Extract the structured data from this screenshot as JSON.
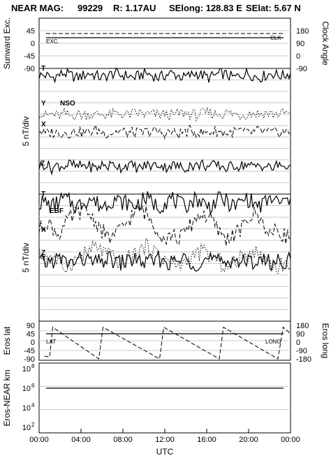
{
  "header": {
    "mission": "NEAR MAG:",
    "date": "99229",
    "r": "R: 1.17AU",
    "selong": "SElong:  128.83 E",
    "selat": "SElat:    5.67 N"
  },
  "colors": {
    "ink": "#000000",
    "grid": "#c8c8d2",
    "background": "#ffffff"
  },
  "chart_data": [
    {
      "id": "sunward",
      "type": "line",
      "ylabel_left": "Sunward Exc.",
      "ylabel_right": "Clock Angle",
      "left_ticks": [
        "45",
        "0",
        "-45",
        "-90"
      ],
      "right_ticks": [
        "180",
        "90",
        "0",
        "-90"
      ],
      "ylim": [
        -90,
        90
      ],
      "tag_left": "EXC.",
      "tag_right": "CLK",
      "series": [
        {
          "label": "EXC.",
          "style": "solid",
          "values": [
            20,
            20
          ]
        },
        {
          "label": "CLK",
          "style": "dashed",
          "values": [
            35,
            35
          ]
        }
      ]
    },
    {
      "id": "nso",
      "type": "line",
      "panel_label": "NSO",
      "ylabel": "5 nT/div",
      "labels": {
        "t": "T",
        "y": "Y",
        "x": "X",
        "z": "Z"
      },
      "series": [
        {
          "label": "T",
          "style": "solid",
          "values": [
            9,
            9,
            8,
            9,
            10,
            9,
            8,
            9,
            10,
            9,
            8,
            9,
            10,
            9,
            9,
            8,
            9,
            10,
            9,
            8,
            9,
            10,
            9,
            8,
            9,
            10,
            9,
            8,
            9,
            10,
            9,
            8,
            9,
            10,
            9,
            8,
            9,
            10,
            9,
            9,
            10
          ]
        },
        {
          "label": "Y",
          "style": "dotted",
          "values": [
            4,
            2,
            3,
            2,
            3,
            2,
            3,
            2.5,
            3,
            2.5,
            3,
            2.5,
            3,
            3,
            2.5,
            3,
            3.5,
            2.5,
            3,
            2.5,
            3,
            2.5,
            3,
            3.5,
            3,
            2.5,
            3,
            3.5,
            3,
            3,
            3.5,
            3,
            2.5,
            3,
            3.5,
            3,
            3.5,
            3,
            3,
            3.5,
            3
          ]
        },
        {
          "label": "X",
          "style": "dashed",
          "values": [
            2,
            0,
            1,
            0.5,
            1,
            0.5,
            1.5,
            0.5,
            1,
            2,
            1,
            0.5,
            1,
            1.5,
            0.5,
            1,
            0.5,
            1,
            1.5,
            1,
            0.5,
            1,
            0,
            1,
            1.5,
            1,
            0.5,
            1,
            1.5,
            1,
            0.5,
            1,
            1.5,
            0.5,
            1,
            1.5,
            1,
            0.5,
            1,
            1,
            0.5
          ]
        },
        {
          "label": "Z",
          "style": "solid",
          "values": [
            -4,
            -3,
            -5,
            -3.5,
            -4,
            -3,
            -4.5,
            -3.5,
            -4,
            -5,
            -3.5,
            -4,
            -3,
            -4.5,
            -3.5,
            -4,
            -5,
            -3.5,
            -4,
            -3,
            -4.5,
            -3.5,
            -4,
            -5,
            -3.5,
            -4,
            -3,
            -4.5,
            -3.5,
            -4,
            -5,
            -3.5,
            -4,
            -3,
            -4.5,
            -3.5,
            -4,
            -5,
            -3.5,
            -4,
            -3.5
          ]
        }
      ]
    },
    {
      "id": "ebf",
      "type": "line",
      "panel_label": "EBF",
      "ylabel": "5 nT/div",
      "labels": {
        "t": "T",
        "x": "X",
        "z": "Z",
        "y": "Y"
      },
      "series": [
        {
          "label": "T",
          "style": "solid",
          "values": [
            9,
            9,
            8,
            9,
            10,
            9,
            8,
            9,
            10,
            9,
            8,
            9,
            10,
            9,
            9,
            8,
            9,
            10,
            9,
            8,
            9,
            10,
            9,
            8,
            9,
            10,
            9,
            8,
            9,
            10,
            9,
            8,
            9,
            10,
            9,
            8,
            9,
            10,
            9,
            9,
            10
          ]
        },
        {
          "label": "X",
          "style": "dashed",
          "values": [
            2,
            4,
            3,
            1,
            3,
            5,
            6,
            7,
            6,
            4,
            2,
            0,
            1,
            2,
            4,
            6,
            7,
            6,
            4,
            2,
            0,
            1,
            0,
            1,
            3,
            5,
            6,
            5,
            3,
            1,
            0,
            1,
            2,
            4,
            6,
            5,
            3,
            1,
            2,
            1,
            0
          ]
        },
        {
          "label": "Z",
          "style": "dotted",
          "values": [
            0,
            -1,
            0,
            -2,
            -3,
            -2,
            -1,
            0,
            1,
            2,
            1,
            0,
            -1,
            -2,
            -1,
            0,
            1,
            2,
            1,
            0,
            -1,
            -2,
            -3,
            -2,
            -1,
            0,
            1,
            0,
            -1,
            -2,
            -3,
            -2,
            -1,
            0,
            1,
            0,
            -1,
            -2,
            -3,
            -2,
            -3
          ]
        },
        {
          "label": "Y",
          "style": "solid",
          "values": [
            -1,
            -1.5,
            -1,
            -0.5,
            -1,
            -1.5,
            -1,
            -0.5,
            -1,
            -1.5,
            -1,
            -0.5,
            -1,
            -1.5,
            -1,
            -0.5,
            -1,
            -1.5,
            -1,
            -0.5,
            -1,
            -1.5,
            -1,
            -0.5,
            -1,
            -1.5,
            -1,
            -0.5,
            -1,
            -1.5,
            -1,
            -0.5,
            -1,
            -1.5,
            -1,
            -0.5,
            -1,
            -1.5,
            -1,
            -1,
            -0.5
          ]
        }
      ]
    },
    {
      "id": "eros",
      "type": "line",
      "ylabel_left": "Eros lat",
      "ylabel_right": "Eros long",
      "left_ticks": [
        "90",
        "45",
        "0",
        "-45",
        "-90"
      ],
      "right_ticks": [
        "180",
        "90",
        "0",
        "-90",
        "-180"
      ],
      "ylim": [
        -90,
        90
      ],
      "tag_left": "LAT",
      "tag_right": "LONG",
      "lat_value": 45,
      "long_sawtooth": {
        "style": "dashed",
        "points": [
          [
            0.5,
            -75
          ],
          [
            1.0,
            -80
          ],
          [
            1.3,
            80
          ],
          [
            5.7,
            -90
          ],
          [
            6.1,
            80
          ],
          [
            11.5,
            -90
          ],
          [
            11.9,
            80
          ],
          [
            17.2,
            -90
          ],
          [
            17.6,
            80
          ],
          [
            22.8,
            -90
          ],
          [
            23.3,
            80
          ],
          [
            24.0,
            45
          ]
        ]
      }
    },
    {
      "id": "range",
      "type": "line",
      "ylabel": "Eros-NEAR km",
      "ticks": [
        {
          "base": "10",
          "exp": "8"
        },
        {
          "base": "10",
          "exp": "6"
        },
        {
          "base": "10",
          "exp": "4"
        },
        {
          "base": "10",
          "exp": "2"
        }
      ],
      "ylim_log": [
        2,
        8
      ],
      "value_log10": 6
    }
  ],
  "time_axis": {
    "xlabel": "UTC",
    "ticks": [
      "00:00",
      "04:00",
      "08:00",
      "12:00",
      "16:00",
      "20:00",
      "00:00"
    ],
    "xlim_hours": [
      0,
      24
    ]
  }
}
